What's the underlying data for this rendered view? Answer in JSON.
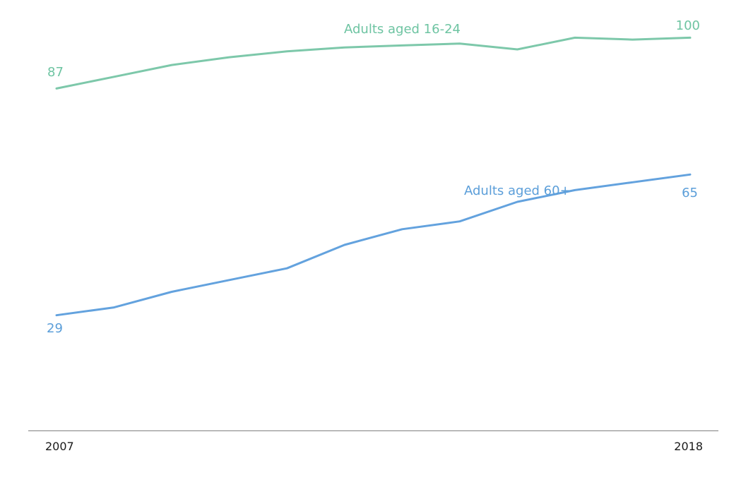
{
  "chart_data": {
    "type": "line",
    "title": "",
    "x": [
      2007,
      2008,
      2009,
      2010,
      2011,
      2012,
      2013,
      2014,
      2015,
      2016,
      2017,
      2018
    ],
    "x_tick_labels": [
      "2007",
      "2018"
    ],
    "grid": false,
    "legend_position": "inline-labels-above-lines",
    "axis_color": "#808080",
    "tick_label_color": "#1a1a1a",
    "ylim": [
      25,
      104
    ],
    "series": [
      {
        "name": "Adults aged 16-24",
        "color": "#7dc8aa",
        "label_color": "#6ec4a2",
        "values": [
          87,
          90,
          93,
          95,
          96.5,
          97.5,
          98,
          98.5,
          97,
          100,
          99.5,
          100
        ],
        "first_value_label": "87",
        "last_value_label": "100"
      },
      {
        "name": "Adults aged 60+",
        "color": "#63a2de",
        "label_color": "#5b9ed9",
        "values": [
          29,
          31,
          35,
          38,
          41,
          47,
          51,
          53,
          58,
          61,
          63,
          65
        ],
        "first_value_label": "29",
        "last_value_label": "65"
      }
    ]
  }
}
